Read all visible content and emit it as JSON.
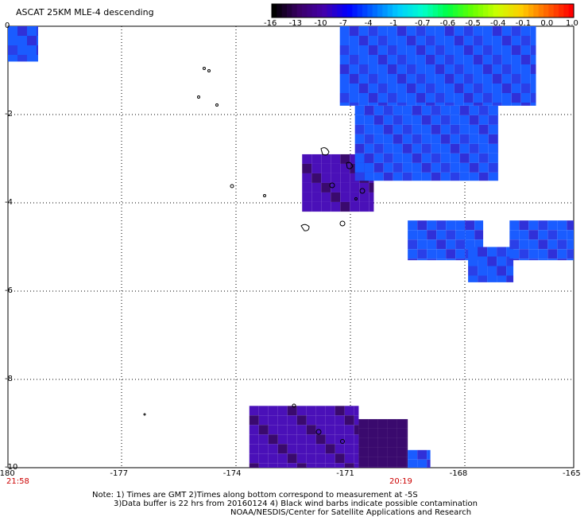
{
  "title": "ASCAT 25KM MLE-4 descending",
  "colorbar": {
    "labels": [
      "-16",
      "-13",
      "-10",
      "-7",
      "-4",
      "-1",
      "-0.7",
      "-0.6",
      "-0.5",
      "-0.4",
      "-0.1",
      "0.0",
      "1.0"
    ],
    "colors": [
      "#000000",
      "#3a0066",
      "#4400aa",
      "#0000ff",
      "#0066ff",
      "#00ccff",
      "#00ffcc",
      "#00ff44",
      "#66ff00",
      "#ccff00",
      "#ffcc00",
      "#ff6600",
      "#ff0000"
    ]
  },
  "axes": {
    "x_ticks": [
      "-180",
      "-177",
      "-174",
      "-171",
      "-168",
      "-165"
    ],
    "y_ticks": [
      "0",
      "-2",
      "-4",
      "-6",
      "-8",
      "-10"
    ],
    "xlim": [
      -180,
      -165
    ],
    "ylim": [
      -10,
      0
    ]
  },
  "times": {
    "left": "21:58",
    "right": "20:19"
  },
  "notes": {
    "line1": "Note: 1) Times are GMT 2)Times along bottom correspond to measurement at -5S",
    "line2": "3)Data buffer is 22 hrs from 20160124 4) Black wind barbs indicate possible contamination",
    "line3": "NOAA/NESDIS/Center for Satellite Applications and Research"
  },
  "swaths": [
    {
      "lon": [
        -180,
        -179.2
      ],
      "lat": [
        -0.8,
        0
      ],
      "value": -7
    },
    {
      "lon": [
        -172.2,
        -170.3
      ],
      "lat": [
        -4.2,
        -2.9
      ],
      "value": -10
    },
    {
      "lon": [
        -170.8,
        -167.0
      ],
      "lat": [
        -3.5,
        -1.8
      ],
      "value": -7
    },
    {
      "lon": [
        -171.2,
        -166.0
      ],
      "lat": [
        -1.8,
        0
      ],
      "value": -7
    },
    {
      "lon": [
        -169.4,
        -167.4
      ],
      "lat": [
        -5.3,
        -4.4
      ],
      "value": -7
    },
    {
      "lon": [
        -167.8,
        -166.6
      ],
      "lat": [
        -5.8,
        -5.0
      ],
      "value": -7
    },
    {
      "lon": [
        -166.7,
        -165.0
      ],
      "lat": [
        -5.3,
        -4.4
      ],
      "value": -7
    },
    {
      "lon": [
        -173.6,
        -170.7
      ],
      "lat": [
        -10,
        -8.6
      ],
      "value": -10
    },
    {
      "lon": [
        -170.7,
        -169.4
      ],
      "lat": [
        -10,
        -8.9
      ],
      "value": -13
    },
    {
      "lon": [
        -169.4,
        -168.8
      ],
      "lat": [
        -10,
        -9.6
      ],
      "value": -7
    }
  ]
}
